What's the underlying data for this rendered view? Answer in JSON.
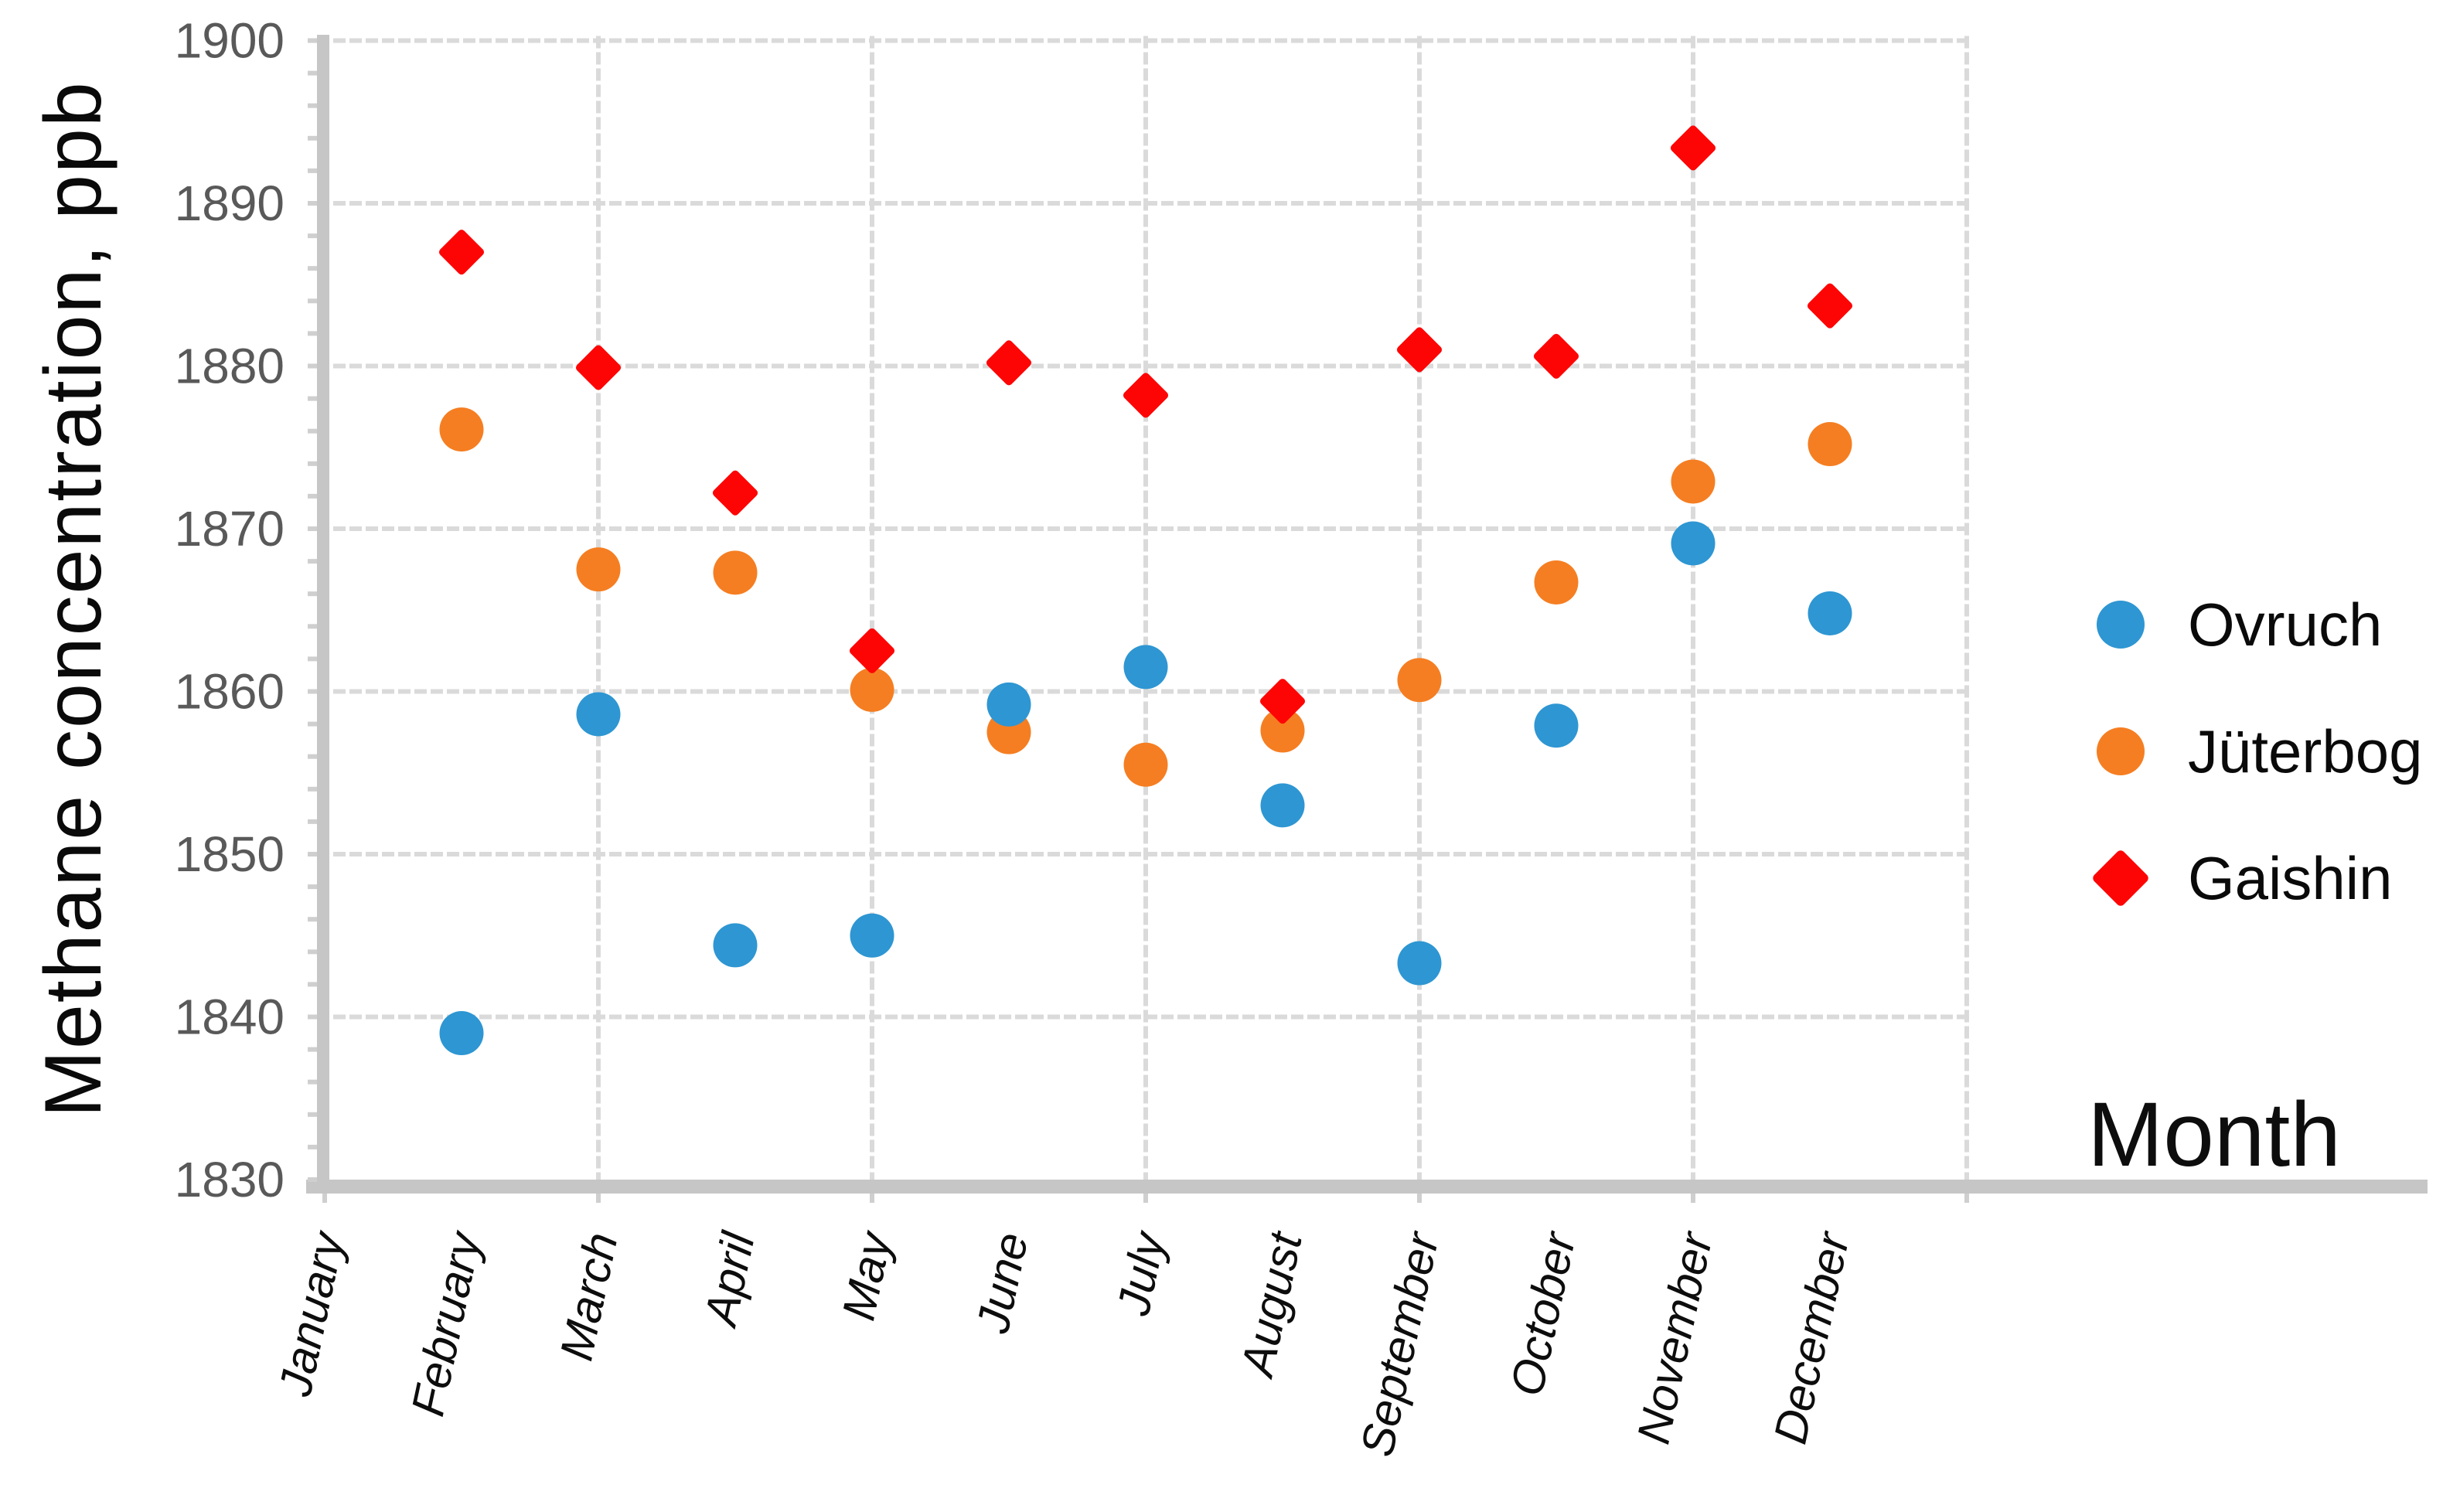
{
  "chart_data": {
    "type": "scatter",
    "title": "",
    "xlabel": "Month",
    "ylabel": "Methane concentration, ppb",
    "categories": [
      "January",
      "February",
      "March",
      "April",
      "May",
      "June",
      "July",
      "August",
      "September",
      "October",
      "November",
      "December"
    ],
    "y_ticks": [
      1830,
      1840,
      1850,
      1860,
      1870,
      1880,
      1890,
      1900
    ],
    "ylim": [
      1830,
      1900
    ],
    "grid": true,
    "legend_position": "right",
    "colors": {
      "ovruch_blue": "#2E96D2",
      "juterbog_orange": "#F57E22",
      "gaishin_red": "#FE0505",
      "gridline_gray": "#DADADA",
      "axis_bar_gray": "#C6C6C6",
      "tick_label_gray": "#595959",
      "text_black": "#0a0a0a"
    },
    "series": [
      {
        "name": "Jüterbog",
        "marker": "circle",
        "color": "#F57E22",
        "points": [
          {
            "month": 2,
            "value": 1876.1
          },
          {
            "month": 3,
            "value": 1867.5
          },
          {
            "month": 4,
            "value": 1867.3
          },
          {
            "month": 5,
            "value": 1860.1
          },
          {
            "month": 6,
            "value": 1857.5
          },
          {
            "month": 7,
            "value": 1855.5
          },
          {
            "month": 8,
            "value": 1857.6
          },
          {
            "month": 9,
            "value": 1860.7
          },
          {
            "month": 10,
            "value": 1866.7
          },
          {
            "month": 11,
            "value": 1872.9
          },
          {
            "month": 12,
            "value": 1875.2
          }
        ]
      },
      {
        "name": "Ovruch",
        "marker": "circle",
        "color": "#2E96D2",
        "points": [
          {
            "month": 2,
            "value": 1839.0
          },
          {
            "month": 3,
            "value": 1858.6
          },
          {
            "month": 4,
            "value": 1844.4
          },
          {
            "month": 5,
            "value": 1845.0
          },
          {
            "month": 6,
            "value": 1859.2
          },
          {
            "month": 7,
            "value": 1861.5
          },
          {
            "month": 8,
            "value": 1853.0
          },
          {
            "month": 9,
            "value": 1843.3
          },
          {
            "month": 10,
            "value": 1857.9
          },
          {
            "month": 11,
            "value": 1869.1
          },
          {
            "month": 12,
            "value": 1864.8
          }
        ]
      },
      {
        "name": "Gaishin",
        "marker": "diamond",
        "color": "#FE0505",
        "points": [
          {
            "month": 2,
            "value": 1887.0
          },
          {
            "month": 3,
            "value": 1879.9
          },
          {
            "month": 4,
            "value": 1872.2
          },
          {
            "month": 5,
            "value": 1862.5
          },
          {
            "month": 6,
            "value": 1880.2
          },
          {
            "month": 7,
            "value": 1878.2
          },
          {
            "month": 8,
            "value": 1859.4
          },
          {
            "month": 9,
            "value": 1881.0
          },
          {
            "month": 10,
            "value": 1880.6
          },
          {
            "month": 11,
            "value": 1893.4
          },
          {
            "month": 12,
            "value": 1883.7
          }
        ]
      }
    ],
    "legend_order": [
      "Ovruch",
      "Jüterbog",
      "Gaishin"
    ]
  }
}
